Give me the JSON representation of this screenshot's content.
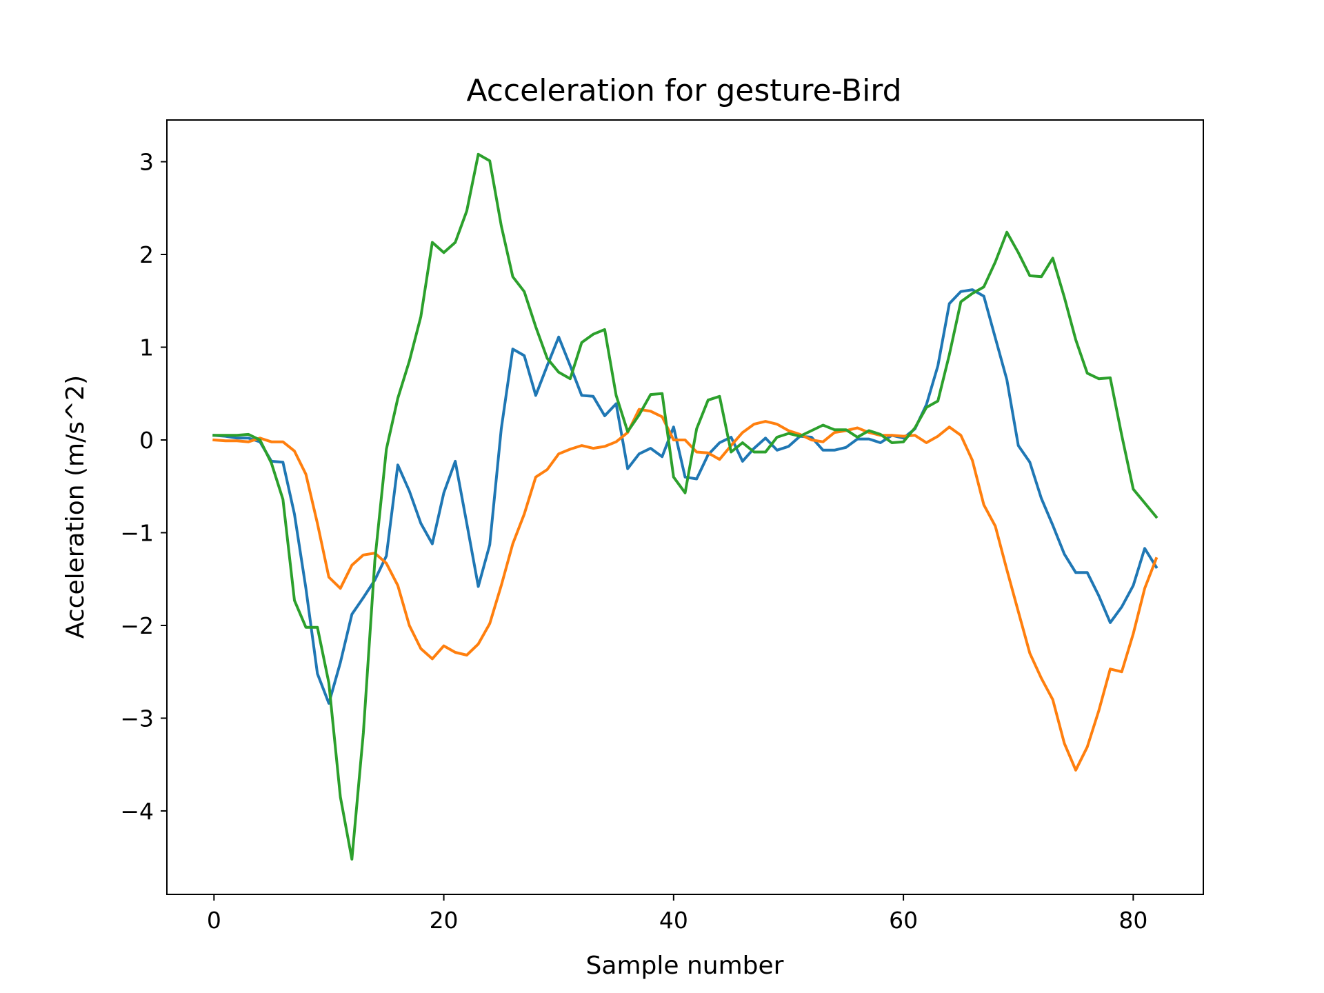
{
  "chart_data": {
    "type": "line",
    "title": "Acceleration for gesture-Bird",
    "xlabel": "Sample number",
    "ylabel": "Acceleration (m/s^2)",
    "xlim": [
      -4.1,
      86.1
    ],
    "ylim": [
      -4.9,
      3.45
    ],
    "xticks": [
      0,
      20,
      40,
      60,
      80
    ],
    "yticks": [
      3,
      2,
      1,
      0,
      -1,
      -2,
      -3,
      -4
    ],
    "ytick_labels": [
      "3",
      "2",
      "1",
      "0",
      "−1",
      "−2",
      "−3",
      "−4"
    ],
    "grid": false,
    "legend": "none",
    "x": [
      0,
      1,
      2,
      3,
      4,
      5,
      6,
      7,
      8,
      9,
      10,
      11,
      12,
      13,
      14,
      15,
      16,
      17,
      18,
      19,
      20,
      21,
      22,
      23,
      24,
      25,
      26,
      27,
      28,
      29,
      30,
      31,
      32,
      33,
      34,
      35,
      36,
      37,
      38,
      39,
      40,
      41,
      42,
      43,
      44,
      45,
      46,
      47,
      48,
      49,
      50,
      51,
      52,
      53,
      54,
      55,
      56,
      57,
      58,
      59,
      60,
      61,
      62,
      63,
      64,
      65,
      66,
      67,
      68,
      69,
      70,
      71,
      72,
      73,
      74,
      75,
      76,
      77,
      78,
      79,
      80,
      81,
      82
    ],
    "series": [
      {
        "color": "#1f77b4",
        "values": [
          0.05,
          0.04,
          0.02,
          0.02,
          -0.02,
          -0.23,
          -0.24,
          -0.8,
          -1.6,
          -2.52,
          -2.84,
          -2.4,
          -1.88,
          -1.7,
          -1.51,
          -1.25,
          -0.27,
          -0.55,
          -0.9,
          -1.12,
          -0.57,
          -0.23,
          -0.9,
          -1.58,
          -1.13,
          0.12,
          0.98,
          0.91,
          0.48,
          0.8,
          1.11,
          0.8,
          0.48,
          0.47,
          0.26,
          0.39,
          -0.31,
          -0.15,
          -0.09,
          -0.18,
          0.14,
          -0.4,
          -0.42,
          -0.16,
          -0.03,
          0.03,
          -0.23,
          -0.09,
          0.02,
          -0.11,
          -0.07,
          0.04,
          0.03,
          -0.11,
          -0.11,
          -0.08,
          0.01,
          0.01,
          -0.03,
          0.05,
          0.02,
          0.12,
          0.38,
          0.8,
          1.47,
          1.6,
          1.62,
          1.55,
          1.1,
          0.65,
          -0.06,
          -0.24,
          -0.63,
          -0.92,
          -1.23,
          -1.43,
          -1.43,
          -1.68,
          -1.97,
          -1.8,
          -1.57,
          -1.17,
          -1.37
        ]
      },
      {
        "color": "#ff7f0e",
        "values": [
          0.0,
          -0.01,
          -0.01,
          -0.02,
          0.02,
          -0.02,
          -0.02,
          -0.12,
          -0.37,
          -0.9,
          -1.48,
          -1.6,
          -1.35,
          -1.24,
          -1.22,
          -1.33,
          -1.57,
          -2.0,
          -2.25,
          -2.36,
          -2.22,
          -2.29,
          -2.32,
          -2.2,
          -1.98,
          -1.57,
          -1.12,
          -0.8,
          -0.4,
          -0.32,
          -0.15,
          -0.1,
          -0.06,
          -0.09,
          -0.07,
          -0.02,
          0.08,
          0.33,
          0.31,
          0.25,
          0.0,
          0.0,
          -0.13,
          -0.14,
          -0.21,
          -0.06,
          0.08,
          0.17,
          0.2,
          0.17,
          0.1,
          0.06,
          0.0,
          -0.02,
          0.08,
          0.1,
          0.13,
          0.08,
          0.05,
          0.05,
          0.04,
          0.05,
          -0.03,
          0.04,
          0.14,
          0.05,
          -0.22,
          -0.7,
          -0.93,
          -1.4,
          -1.85,
          -2.3,
          -2.57,
          -2.8,
          -3.27,
          -3.56,
          -3.31,
          -2.92,
          -2.47,
          -2.5,
          -2.09,
          -1.6,
          -1.28
        ]
      },
      {
        "color": "#2ca02c",
        "values": [
          0.05,
          0.05,
          0.05,
          0.06,
          0.0,
          -0.25,
          -0.64,
          -1.73,
          -2.02,
          -2.02,
          -2.62,
          -3.85,
          -4.52,
          -3.16,
          -1.3,
          -0.1,
          0.45,
          0.85,
          1.33,
          2.13,
          2.02,
          2.13,
          2.47,
          3.08,
          3.01,
          2.31,
          1.76,
          1.6,
          1.22,
          0.88,
          0.73,
          0.66,
          1.05,
          1.14,
          1.19,
          0.48,
          0.09,
          0.27,
          0.49,
          0.5,
          -0.4,
          -0.57,
          0.12,
          0.43,
          0.47,
          -0.13,
          -0.03,
          -0.13,
          -0.13,
          0.03,
          0.07,
          0.04,
          0.1,
          0.16,
          0.11,
          0.11,
          0.03,
          0.1,
          0.06,
          -0.03,
          -0.02,
          0.13,
          0.35,
          0.42,
          0.92,
          1.49,
          1.58,
          1.65,
          1.92,
          2.24,
          2.02,
          1.77,
          1.76,
          1.96,
          1.54,
          1.08,
          0.72,
          0.66,
          0.67,
          0.05,
          -0.53,
          -0.68,
          -0.83
        ]
      }
    ]
  }
}
